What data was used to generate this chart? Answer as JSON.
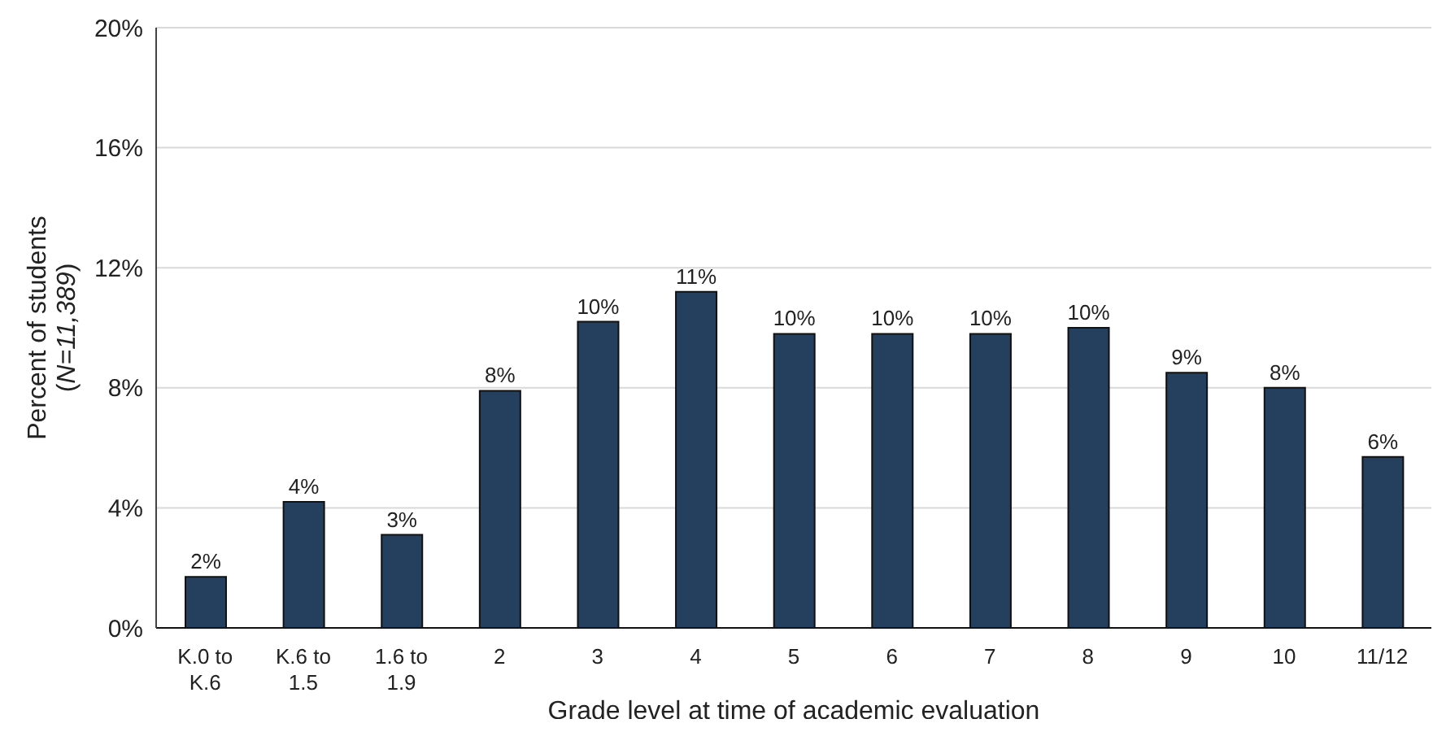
{
  "chart_data": {
    "type": "bar",
    "xlabel": "Grade level at time of academic evaluation",
    "ylabel": "Percent of students (N=11,389)",
    "categories": [
      "K.0 to K.6",
      "K.6 to 1.5",
      "1.6 to 1.9",
      "2",
      "3",
      "4",
      "5",
      "6",
      "7",
      "8",
      "9",
      "10",
      "11/12"
    ],
    "values": [
      1.7,
      4.2,
      3.1,
      7.9,
      10.2,
      11.2,
      9.8,
      9.8,
      9.8,
      10.0,
      8.5,
      8.0,
      5.7
    ],
    "value_labels": [
      "2%",
      "4%",
      "3%",
      "8%",
      "10%",
      "11%",
      "10%",
      "10%",
      "10%",
      "10%",
      "9%",
      "8%",
      "6%"
    ],
    "color": "#253f5f",
    "ylim": [
      0,
      20
    ],
    "yticks": [
      {
        "value": 0,
        "label": "0%"
      },
      {
        "value": 4,
        "label": "4%"
      },
      {
        "value": 8,
        "label": "8%"
      },
      {
        "value": 12,
        "label": "12%"
      },
      {
        "value": 16,
        "label": "16%"
      },
      {
        "value": 20,
        "label": "20%"
      }
    ],
    "grid": "y",
    "legend": false
  }
}
